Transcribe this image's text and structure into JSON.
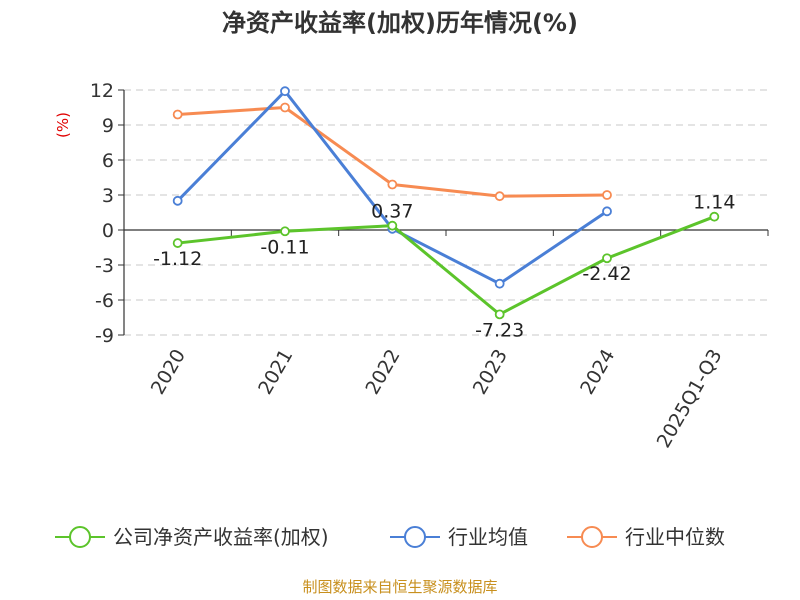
{
  "chart_data": {
    "type": "line",
    "title": "净资产收益率(加权)历年情况(%)",
    "ylabel": "(%)",
    "categories": [
      "2020",
      "2021",
      "2022",
      "2023",
      "2024",
      "2025Q1-Q3"
    ],
    "y_ticks": [
      "12",
      "9",
      "6",
      "3",
      "0",
      "-3",
      "-6",
      "-9"
    ],
    "ylim": [
      -9,
      12
    ],
    "grid": true,
    "legend_placement": "bottom",
    "series": [
      {
        "name": "公司净资产收益率(加权)",
        "color": "#5cc42b",
        "values": [
          -1.12,
          -0.11,
          0.37,
          -7.23,
          -2.42,
          1.14
        ],
        "labels": [
          "-1.12",
          "-0.11",
          "0.37",
          "-7.23",
          "-2.42",
          "1.14"
        ]
      },
      {
        "name": "行业均值",
        "color": "#4a7fd6",
        "values": [
          2.5,
          11.9,
          0.1,
          -4.6,
          1.6,
          null
        ]
      },
      {
        "name": "行业中位数",
        "color": "#f78b52",
        "values": [
          9.9,
          10.5,
          3.9,
          2.9,
          3.0,
          null
        ]
      }
    ]
  },
  "source": "制图数据来自恒生聚源数据库"
}
